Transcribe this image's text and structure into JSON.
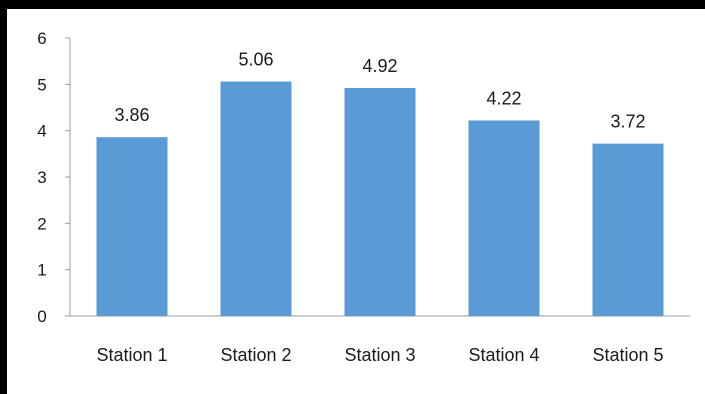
{
  "chart_data": {
    "type": "bar",
    "categories": [
      "Station 1",
      "Station 2",
      "Station 3",
      "Station 4",
      "Station 5"
    ],
    "values": [
      3.86,
      5.06,
      4.92,
      4.22,
      3.72
    ],
    "data_labels": [
      "3.86",
      "5.06",
      "4.92",
      "4.22",
      "3.72"
    ],
    "title": "",
    "xlabel": "",
    "ylabel": "",
    "ylim": [
      0,
      6
    ],
    "yticks": [
      0,
      1,
      2,
      3,
      4,
      5,
      6
    ],
    "grid": false,
    "legend": "none",
    "bar_color": "#5b9bd5",
    "frame_color": "#000000"
  }
}
